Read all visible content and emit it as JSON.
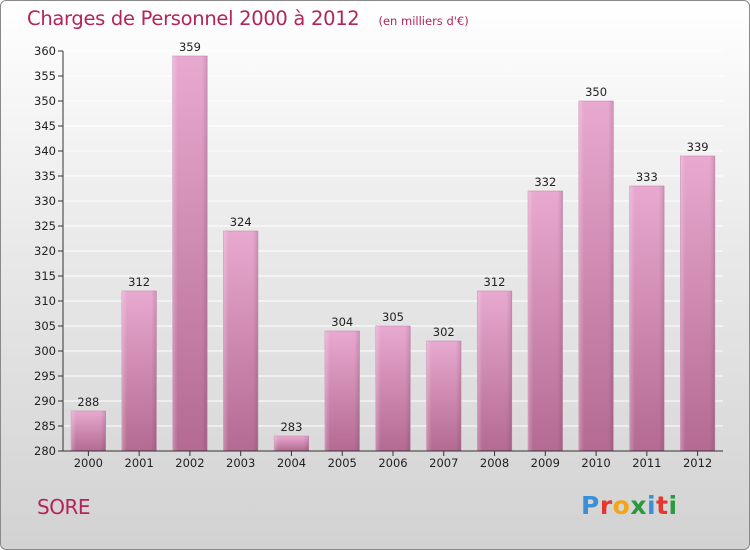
{
  "header": {
    "title": "Charges de Personnel 2000 à 2012",
    "subtitle": "(en milliers d'€)"
  },
  "footer": {
    "location": "SORE",
    "logo_letters": [
      "P",
      "r",
      "o",
      "x",
      "i",
      "t",
      "i"
    ],
    "logo_colors": [
      "#3b8fd6",
      "#e6362e",
      "#f2a516",
      "#2a9a3d",
      "#3b8fd6",
      "#e6362e",
      "#2a9a3d"
    ]
  },
  "colors": {
    "accent": "#b3245a",
    "bar_top": "#e8a9d0",
    "bar_bottom": "#b46a92",
    "grid": "#ffffff",
    "axis": "#333333"
  },
  "chart_data": {
    "type": "bar",
    "categories": [
      "2000",
      "2001",
      "2002",
      "2003",
      "2004",
      "2005",
      "2006",
      "2007",
      "2008",
      "2009",
      "2010",
      "2011",
      "2012"
    ],
    "values": [
      288,
      312,
      359,
      324,
      283,
      304,
      305,
      302,
      312,
      332,
      350,
      333,
      339
    ],
    "data_labels": [
      "288",
      "312",
      "359",
      "324",
      "283",
      "304",
      "305",
      "302",
      "312",
      "332",
      "350",
      "333",
      "339"
    ],
    "yticks": [
      "280",
      "285",
      "290",
      "295",
      "300",
      "305",
      "310",
      "315",
      "320",
      "325",
      "330",
      "335",
      "340",
      "345",
      "350",
      "355",
      "360"
    ],
    "ylim": [
      280,
      360
    ],
    "xlabel": "",
    "ylabel": "",
    "grid": true
  }
}
